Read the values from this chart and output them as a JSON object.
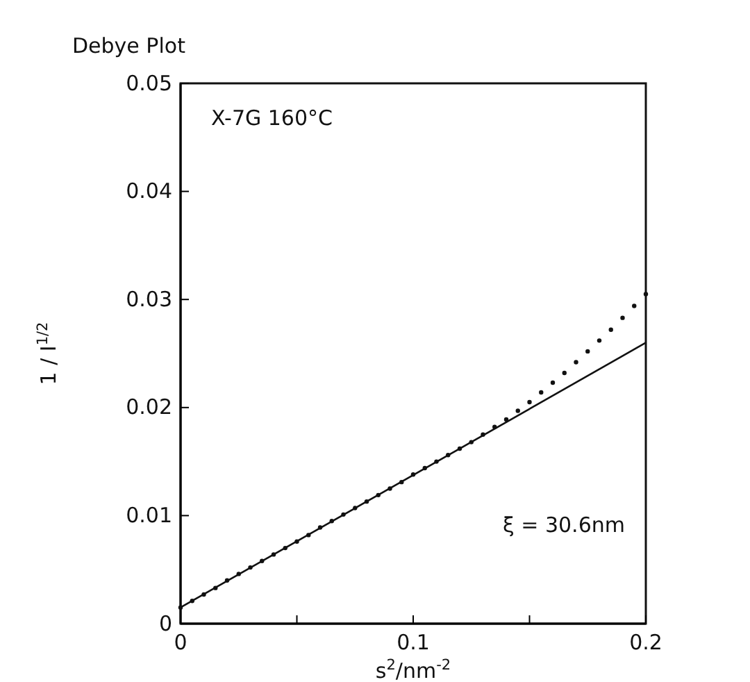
{
  "chart_data": {
    "type": "scatter",
    "title": "Debye Plot",
    "xlabel": "s$^{2}$/nm$^{-2}$",
    "ylabel": "1 / I$^{1/2}$",
    "annotations": [
      "X-7G  160°C",
      "ξ = 30.6nm"
    ],
    "xlim": [
      0,
      0.2
    ],
    "ylim": [
      0,
      0.05
    ],
    "xticks": [
      0,
      {
        "value": 0.05,
        "label": null
      },
      0.1,
      {
        "value": 0.15,
        "label": null
      },
      0.2
    ],
    "yticks": [
      0,
      0.01,
      0.02,
      0.03,
      0.04,
      0.05
    ],
    "grid": false,
    "series": [
      {
        "marker": "circle",
        "color": "#111111",
        "x": [
          0,
          0.005,
          0.01,
          0.015,
          0.02,
          0.025,
          0.03,
          0.035,
          0.04,
          0.045,
          0.05,
          0.055,
          0.06,
          0.065,
          0.07,
          0.075,
          0.08,
          0.085,
          0.09,
          0.095,
          0.1,
          0.105,
          0.11,
          0.115,
          0.12,
          0.125,
          0.13,
          0.135,
          0.14,
          0.145,
          0.15,
          0.155,
          0.16,
          0.165,
          0.17,
          0.175,
          0.18,
          0.185,
          0.19,
          0.195,
          0.2
        ],
        "values": [
          0.0015,
          0.0021,
          0.0027,
          0.0033,
          0.004,
          0.0046,
          0.0052,
          0.0058,
          0.0064,
          0.007,
          0.0076,
          0.0082,
          0.0089,
          0.0095,
          0.0101,
          0.0107,
          0.0113,
          0.0119,
          0.0125,
          0.0131,
          0.0138,
          0.0144,
          0.015,
          0.0156,
          0.0162,
          0.0168,
          0.0175,
          0.0182,
          0.0189,
          0.0197,
          0.0205,
          0.0214,
          0.0223,
          0.0232,
          0.0242,
          0.0252,
          0.0262,
          0.0272,
          0.0283,
          0.0294,
          0.0305
        ]
      },
      {
        "type": "line",
        "color": "#111111",
        "line_style": "solid",
        "x": [
          0,
          0.2
        ],
        "values": [
          0.0015,
          0.026
        ]
      }
    ]
  }
}
